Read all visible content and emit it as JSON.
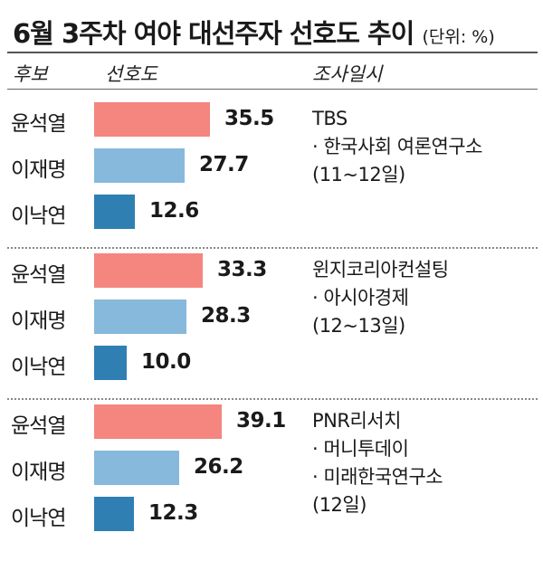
{
  "title": "6월 3주차 여야 대선주자 선호도 추이",
  "unit": "(단위: %)",
  "headers": {
    "candidate": "후보",
    "preference": "선호도",
    "survey": "조사일시"
  },
  "colors": {
    "윤석열": "#f4857f",
    "이재명": "#86b9db",
    "이낙연": "#2f7fb3"
  },
  "chart_data": {
    "type": "bar",
    "orientation": "horizontal",
    "xlim": [
      0,
      40
    ],
    "groups": [
      {
        "survey_lines": [
          "TBS",
          "· 한국사회 여론연구소",
          "(11~12일)"
        ],
        "bars": [
          {
            "name": "윤석열",
            "value": 35.5,
            "label": "35.5"
          },
          {
            "name": "이재명",
            "value": 27.7,
            "label": "27.7"
          },
          {
            "name": "이낙연",
            "value": 12.6,
            "label": "12.6"
          }
        ]
      },
      {
        "survey_lines": [
          "윈지코리아컨설팅",
          "· 아시아경제",
          "(12~13일)"
        ],
        "bars": [
          {
            "name": "윤석열",
            "value": 33.3,
            "label": "33.3"
          },
          {
            "name": "이재명",
            "value": 28.3,
            "label": "28.3"
          },
          {
            "name": "이낙연",
            "value": 10.0,
            "label": "10.0"
          }
        ]
      },
      {
        "survey_lines": [
          "PNR리서치",
          "· 머니투데이",
          "· 미래한국연구소",
          "(12일)"
        ],
        "bars": [
          {
            "name": "윤석열",
            "value": 39.1,
            "label": "39.1"
          },
          {
            "name": "이재명",
            "value": 26.2,
            "label": "26.2"
          },
          {
            "name": "이낙연",
            "value": 12.3,
            "label": "12.3"
          }
        ]
      }
    ]
  }
}
